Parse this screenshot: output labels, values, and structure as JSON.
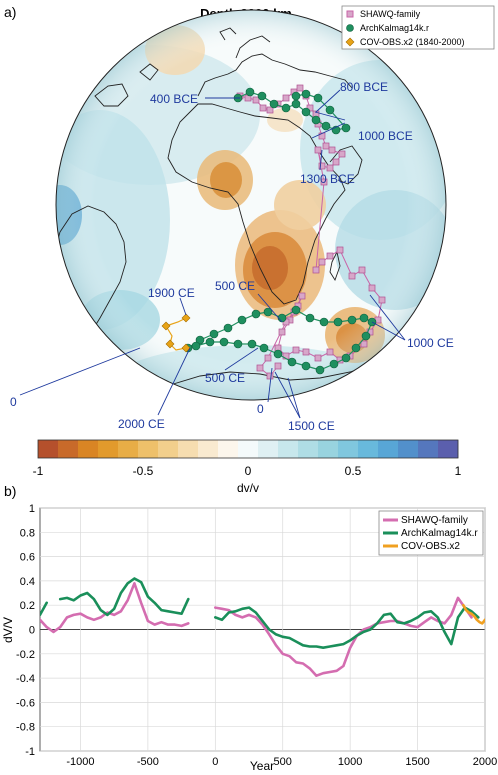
{
  "panel_a": {
    "letter": "a)",
    "title": "Depth 2890 km",
    "legend": [
      {
        "label": "SHAWQ-family",
        "marker": "square",
        "color": "#c964a8"
      },
      {
        "label": "ArchKalmag14k.r",
        "marker": "circle",
        "color": "#1f8f5f"
      },
      {
        "label": "COV-OBS.x2 (1840-2000)",
        "marker": "diamond",
        "color": "#e8a317"
      }
    ],
    "annotations": [
      "400 BCE",
      "800 BCE",
      "1000 BCE",
      "1300 BCE",
      "500 CE",
      "1900 CE",
      "1000 CE",
      "0",
      "500 CE",
      "2000 CE",
      "0",
      "1500 CE"
    ],
    "colorbar": {
      "ticks": [
        "-1",
        "-0.5",
        "0",
        "0.5",
        "1"
      ],
      "label": "dv/v",
      "range": [
        -1,
        1
      ],
      "colors": [
        "#b5502c",
        "#c86a2a",
        "#d98524",
        "#e29a2c",
        "#e8ad46",
        "#eec06a",
        "#f2cf8c",
        "#f6ddb0",
        "#f9ead0",
        "#fcf6ec",
        "#f4fafb",
        "#dff0f3",
        "#c7e7ec",
        "#afdde5",
        "#98d3df",
        "#80c7de",
        "#68b9dc",
        "#58a6d6",
        "#5290cb",
        "#5577bd",
        "#5b5fad"
      ]
    }
  },
  "panel_b": {
    "letter": "b)",
    "ylabel": "dV/V",
    "xlabel": "Year",
    "legend": [
      {
        "label": "SHAWQ-family",
        "color": "#d46db0"
      },
      {
        "label": "ArchKalmag14k.r",
        "color": "#1a8f5a"
      },
      {
        "label": "COV-OBS.x2",
        "color": "#f0a020"
      }
    ]
  },
  "chart_data": {
    "type": "line",
    "xlabel": "Year",
    "ylabel": "dV/V",
    "xlim": [
      -1300,
      2000
    ],
    "ylim": [
      -1,
      1
    ],
    "xticks": [
      -1000,
      -500,
      0,
      500,
      1000,
      1500,
      2000
    ],
    "yticks": [
      1,
      0.8,
      0.6,
      0.4,
      0.2,
      0,
      -0.2,
      -0.4,
      -0.6,
      -0.8,
      -1
    ],
    "grid": true,
    "legend_position": "top-right",
    "series": [
      {
        "name": "SHAWQ-family",
        "color": "#d46db0",
        "segments": [
          [
            [
              -1300,
              0.08
            ],
            [
              -1250,
              0.02
            ],
            [
              -1200,
              -0.02
            ],
            [
              -1150,
              0.02
            ],
            [
              -1100,
              0.1
            ],
            [
              -1050,
              0.12
            ],
            [
              -1000,
              0.13
            ],
            [
              -950,
              0.1
            ],
            [
              -900,
              0.08
            ],
            [
              -850,
              0.1
            ],
            [
              -800,
              0.14
            ],
            [
              -750,
              0.12
            ],
            [
              -700,
              0.15
            ],
            [
              -650,
              0.24
            ],
            [
              -600,
              0.38
            ],
            [
              -550,
              0.22
            ],
            [
              -500,
              0.07
            ],
            [
              -450,
              0.04
            ],
            [
              -400,
              0.06
            ],
            [
              -350,
              0.04
            ],
            [
              -300,
              0.04
            ],
            [
              -250,
              0.03
            ],
            [
              -200,
              0.05
            ]
          ],
          [
            [
              0,
              0.18
            ],
            [
              50,
              0.17
            ],
            [
              100,
              0.16
            ],
            [
              150,
              0.12
            ],
            [
              200,
              0.1
            ],
            [
              250,
              0.12
            ],
            [
              300,
              0.1
            ],
            [
              350,
              0.04
            ],
            [
              400,
              -0.04
            ],
            [
              450,
              -0.13
            ],
            [
              500,
              -0.2
            ],
            [
              550,
              -0.22
            ],
            [
              600,
              -0.27
            ],
            [
              650,
              -0.28
            ],
            [
              700,
              -0.32
            ],
            [
              750,
              -0.38
            ],
            [
              800,
              -0.36
            ],
            [
              850,
              -0.35
            ],
            [
              900,
              -0.34
            ],
            [
              950,
              -0.3
            ],
            [
              1000,
              -0.15
            ],
            [
              1050,
              -0.05
            ],
            [
              1100,
              0.0
            ],
            [
              1150,
              0.02
            ],
            [
              1200,
              0.05
            ],
            [
              1250,
              0.06
            ],
            [
              1300,
              0.07
            ],
            [
              1350,
              0.07
            ],
            [
              1400,
              0.05
            ],
            [
              1450,
              0.03
            ],
            [
              1500,
              0.02
            ],
            [
              1550,
              0.06
            ],
            [
              1600,
              0.1
            ],
            [
              1650,
              0.07
            ],
            [
              1700,
              0.05
            ],
            [
              1750,
              0.12
            ],
            [
              1800,
              0.26
            ],
            [
              1850,
              0.18
            ],
            [
              1900,
              0.1
            ]
          ]
        ]
      },
      {
        "name": "ArchKalmag14k.r",
        "color": "#1a8f5a",
        "segments": [
          [
            [
              -1300,
              0.12
            ],
            [
              -1250,
              0.22
            ]
          ],
          [
            [
              -1150,
              0.25
            ],
            [
              -1100,
              0.26
            ],
            [
              -1050,
              0.24
            ],
            [
              -1000,
              0.28
            ],
            [
              -950,
              0.3
            ],
            [
              -900,
              0.25
            ],
            [
              -850,
              0.16
            ],
            [
              -800,
              0.12
            ],
            [
              -750,
              0.17
            ],
            [
              -700,
              0.3
            ],
            [
              -650,
              0.38
            ],
            [
              -600,
              0.42
            ],
            [
              -550,
              0.39
            ],
            [
              -500,
              0.27
            ],
            [
              -450,
              0.22
            ],
            [
              -400,
              0.16
            ],
            [
              -350,
              0.15
            ],
            [
              -300,
              0.14
            ],
            [
              -250,
              0.13
            ],
            [
              -200,
              0.25
            ]
          ],
          [
            [
              0,
              0.1
            ],
            [
              50,
              0.08
            ],
            [
              100,
              0.14
            ],
            [
              150,
              0.15
            ],
            [
              200,
              0.17
            ],
            [
              250,
              0.18
            ],
            [
              300,
              0.14
            ],
            [
              350,
              0.07
            ],
            [
              400,
              0.0
            ],
            [
              450,
              -0.04
            ],
            [
              500,
              -0.06
            ],
            [
              550,
              -0.07
            ],
            [
              600,
              -0.1
            ],
            [
              650,
              -0.13
            ],
            [
              700,
              -0.14
            ],
            [
              750,
              -0.14
            ],
            [
              800,
              -0.15
            ],
            [
              850,
              -0.14
            ],
            [
              900,
              -0.13
            ],
            [
              950,
              -0.12
            ],
            [
              1000,
              -0.09
            ],
            [
              1050,
              -0.05
            ],
            [
              1100,
              -0.02
            ],
            [
              1150,
              0.0
            ],
            [
              1200,
              0.05
            ],
            [
              1250,
              0.12
            ],
            [
              1300,
              0.13
            ],
            [
              1350,
              0.06
            ],
            [
              1400,
              0.05
            ],
            [
              1450,
              0.07
            ],
            [
              1500,
              0.1
            ],
            [
              1550,
              0.14
            ],
            [
              1600,
              0.15
            ],
            [
              1650,
              0.1
            ],
            [
              1700,
              -0.02
            ],
            [
              1750,
              -0.12
            ],
            [
              1800,
              0.1
            ],
            [
              1850,
              0.18
            ],
            [
              1900,
              0.15
            ],
            [
              1950,
              0.1
            ]
          ]
        ]
      },
      {
        "name": "COV-OBS.x2",
        "color": "#f0a020",
        "segments": [
          [
            [
              1840,
              0.2
            ],
            [
              1860,
              0.16
            ],
            [
              1880,
              0.14
            ],
            [
              1900,
              0.13
            ],
            [
              1920,
              0.11
            ],
            [
              1940,
              0.08
            ],
            [
              1960,
              0.06
            ],
            [
              1980,
              0.05
            ],
            [
              2000,
              0.08
            ]
          ]
        ]
      }
    ]
  }
}
